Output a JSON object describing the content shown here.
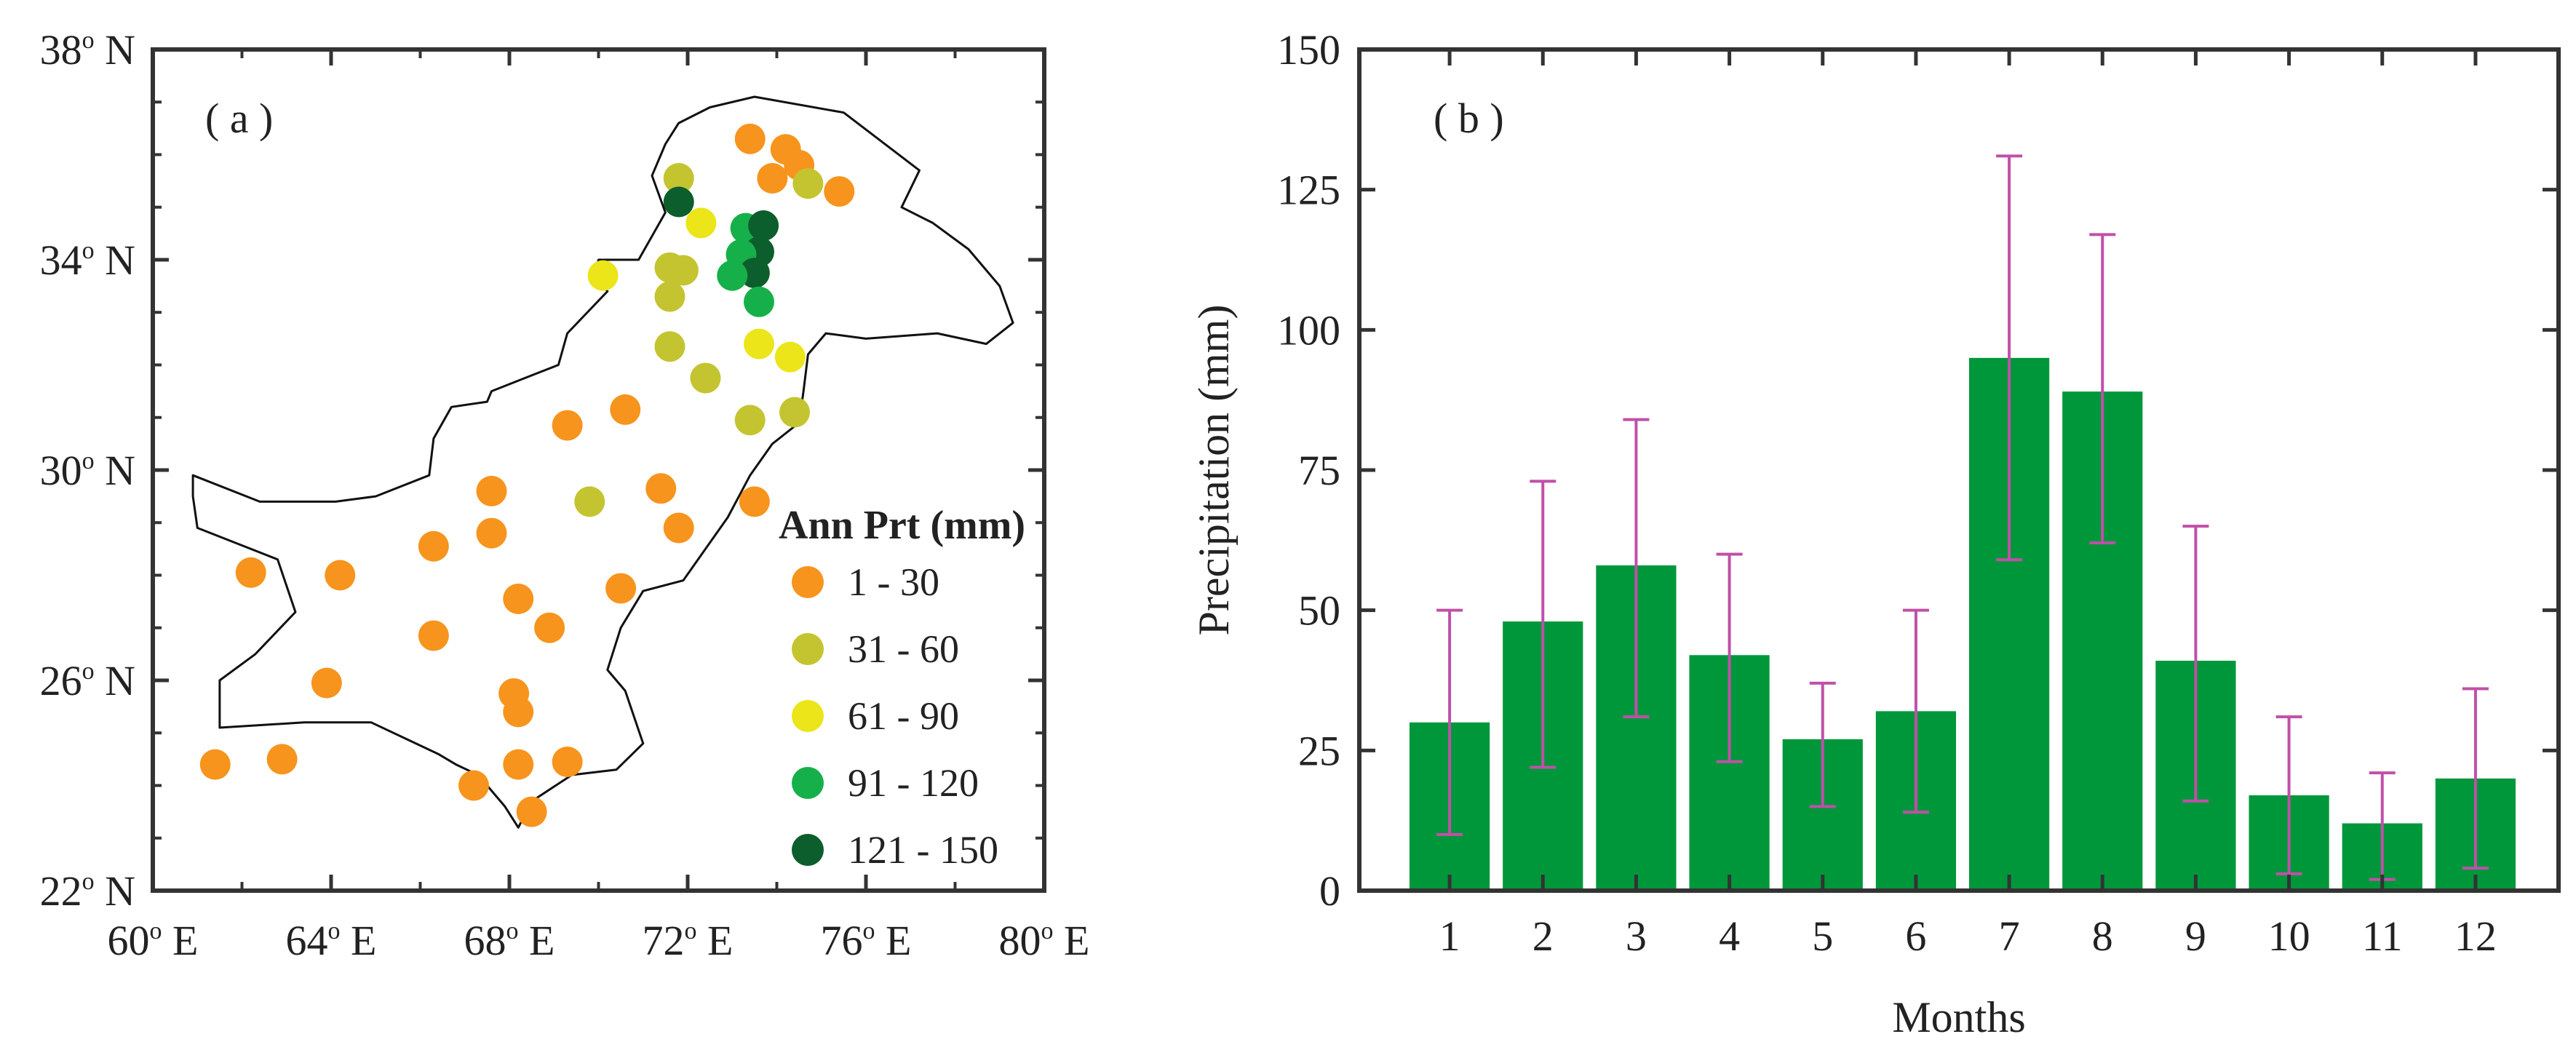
{
  "colors": {
    "bar": "#00973b",
    "errorbar": "#c050a8",
    "map_outline": "#111111",
    "classes": [
      "#f7941d",
      "#c4c430",
      "#ebe51a",
      "#16b04a",
      "#0c5e2c"
    ]
  },
  "map_panel": {
    "label": "( a )",
    "x_ticks": [
      {
        "value": 60,
        "label": "60",
        "sup": "o",
        "suffix": " E"
      },
      {
        "value": 64,
        "label": "64",
        "sup": "o",
        "suffix": " E"
      },
      {
        "value": 68,
        "label": "68",
        "sup": "o",
        "suffix": " E"
      },
      {
        "value": 72,
        "label": "72",
        "sup": "o",
        "suffix": " E"
      },
      {
        "value": 76,
        "label": "76",
        "sup": "o",
        "suffix": " E"
      },
      {
        "value": 80,
        "label": "80",
        "sup": "o",
        "suffix": " E"
      }
    ],
    "y_ticks": [
      {
        "value": 38,
        "label": "38",
        "sup": "o",
        "suffix": " N"
      },
      {
        "value": 34,
        "label": "34",
        "sup": "o",
        "suffix": " N"
      },
      {
        "value": 30,
        "label": "30",
        "sup": "o",
        "suffix": " N"
      },
      {
        "value": 26,
        "label": "26",
        "sup": "o",
        "suffix": " N"
      },
      {
        "value": 22,
        "label": "22",
        "sup": "o",
        "suffix": " N"
      }
    ],
    "xlim": [
      60,
      80
    ],
    "ylim": [
      22,
      38
    ],
    "legend": {
      "title": "Ann Prt (mm)",
      "items": [
        "1 - 30",
        "31 - 60",
        "61 - 90",
        "91 - 120",
        "121 - 150"
      ]
    },
    "outline": [
      [
        73.5,
        37.1
      ],
      [
        75.5,
        36.8
      ],
      [
        77.2,
        35.7
      ],
      [
        76.8,
        35.0
      ],
      [
        77.5,
        34.7
      ],
      [
        78.3,
        34.2
      ],
      [
        79.0,
        33.5
      ],
      [
        79.3,
        32.8
      ],
      [
        78.7,
        32.4
      ],
      [
        77.6,
        32.6
      ],
      [
        76.0,
        32.5
      ],
      [
        75.1,
        32.6
      ],
      [
        74.7,
        32.2
      ],
      [
        74.6,
        31.5
      ],
      [
        74.5,
        30.9
      ],
      [
        73.9,
        30.5
      ],
      [
        73.4,
        29.9
      ],
      [
        72.9,
        29.1
      ],
      [
        71.9,
        27.9
      ],
      [
        71.0,
        27.7
      ],
      [
        70.5,
        27.0
      ],
      [
        70.2,
        26.2
      ],
      [
        70.6,
        25.8
      ],
      [
        71.0,
        24.8
      ],
      [
        70.4,
        24.3
      ],
      [
        69.4,
        24.2
      ],
      [
        68.5,
        23.7
      ],
      [
        68.2,
        23.2
      ],
      [
        67.9,
        23.6
      ],
      [
        67.3,
        24.2
      ],
      [
        66.8,
        24.4
      ],
      [
        66.4,
        24.6
      ],
      [
        64.9,
        25.2
      ],
      [
        63.4,
        25.2
      ],
      [
        61.5,
        25.1
      ],
      [
        61.5,
        26.0
      ],
      [
        62.3,
        26.5
      ],
      [
        63.2,
        27.3
      ],
      [
        62.8,
        28.3
      ],
      [
        61.0,
        28.9
      ],
      [
        60.9,
        29.5
      ],
      [
        60.9,
        29.9
      ],
      [
        62.4,
        29.4
      ],
      [
        64.1,
        29.4
      ],
      [
        65.0,
        29.5
      ],
      [
        66.2,
        29.9
      ],
      [
        66.3,
        30.6
      ],
      [
        66.7,
        31.2
      ],
      [
        67.5,
        31.3
      ],
      [
        67.6,
        31.5
      ],
      [
        68.5,
        31.8
      ],
      [
        69.1,
        32.0
      ],
      [
        69.3,
        32.6
      ],
      [
        70.2,
        33.4
      ],
      [
        69.9,
        33.7
      ],
      [
        70.0,
        34.0
      ],
      [
        70.9,
        34.0
      ],
      [
        71.1,
        34.3
      ],
      [
        71.5,
        34.9
      ],
      [
        71.2,
        35.6
      ],
      [
        71.5,
        36.2
      ],
      [
        71.8,
        36.6
      ],
      [
        72.5,
        36.9
      ]
    ],
    "stations": [
      {
        "lon": 73.4,
        "lat": 36.3,
        "c": 0
      },
      {
        "lon": 74.2,
        "lat": 36.1,
        "c": 0
      },
      {
        "lon": 74.5,
        "lat": 35.8,
        "c": 0
      },
      {
        "lon": 73.9,
        "lat": 35.55,
        "c": 0
      },
      {
        "lon": 75.4,
        "lat": 35.3,
        "c": 0
      },
      {
        "lon": 71.8,
        "lat": 35.55,
        "c": 1
      },
      {
        "lon": 74.7,
        "lat": 35.45,
        "c": 1
      },
      {
        "lon": 71.8,
        "lat": 35.1,
        "c": 4
      },
      {
        "lon": 72.3,
        "lat": 34.7,
        "c": 2
      },
      {
        "lon": 73.3,
        "lat": 34.6,
        "c": 3
      },
      {
        "lon": 73.7,
        "lat": 34.65,
        "c": 4
      },
      {
        "lon": 73.6,
        "lat": 34.15,
        "c": 4
      },
      {
        "lon": 73.2,
        "lat": 34.1,
        "c": 3
      },
      {
        "lon": 73.5,
        "lat": 33.75,
        "c": 4
      },
      {
        "lon": 73.0,
        "lat": 33.7,
        "c": 3
      },
      {
        "lon": 73.6,
        "lat": 33.2,
        "c": 3
      },
      {
        "lon": 70.1,
        "lat": 33.7,
        "c": 2
      },
      {
        "lon": 71.6,
        "lat": 33.85,
        "c": 1
      },
      {
        "lon": 71.9,
        "lat": 33.8,
        "c": 1
      },
      {
        "lon": 71.6,
        "lat": 33.3,
        "c": 1
      },
      {
        "lon": 71.6,
        "lat": 32.35,
        "c": 1
      },
      {
        "lon": 72.4,
        "lat": 31.75,
        "c": 1
      },
      {
        "lon": 73.4,
        "lat": 30.95,
        "c": 1
      },
      {
        "lon": 74.4,
        "lat": 31.1,
        "c": 1
      },
      {
        "lon": 69.8,
        "lat": 29.4,
        "c": 1
      },
      {
        "lon": 73.6,
        "lat": 32.4,
        "c": 2
      },
      {
        "lon": 74.3,
        "lat": 32.15,
        "c": 2
      },
      {
        "lon": 70.6,
        "lat": 31.15,
        "c": 0
      },
      {
        "lon": 69.3,
        "lat": 30.85,
        "c": 0
      },
      {
        "lon": 67.6,
        "lat": 29.6,
        "c": 0
      },
      {
        "lon": 71.4,
        "lat": 29.65,
        "c": 0
      },
      {
        "lon": 73.5,
        "lat": 29.4,
        "c": 0
      },
      {
        "lon": 66.3,
        "lat": 28.55,
        "c": 0
      },
      {
        "lon": 67.6,
        "lat": 28.8,
        "c": 0
      },
      {
        "lon": 71.8,
        "lat": 28.9,
        "c": 0
      },
      {
        "lon": 62.2,
        "lat": 28.05,
        "c": 0
      },
      {
        "lon": 64.2,
        "lat": 28.0,
        "c": 0
      },
      {
        "lon": 68.2,
        "lat": 27.55,
        "c": 0
      },
      {
        "lon": 70.5,
        "lat": 27.75,
        "c": 0
      },
      {
        "lon": 68.9,
        "lat": 27.0,
        "c": 0
      },
      {
        "lon": 66.3,
        "lat": 26.85,
        "c": 0
      },
      {
        "lon": 63.9,
        "lat": 25.95,
        "c": 0
      },
      {
        "lon": 68.1,
        "lat": 25.75,
        "c": 0
      },
      {
        "lon": 68.2,
        "lat": 25.4,
        "c": 0
      },
      {
        "lon": 61.4,
        "lat": 24.4,
        "c": 0
      },
      {
        "lon": 62.9,
        "lat": 24.5,
        "c": 0
      },
      {
        "lon": 69.3,
        "lat": 24.45,
        "c": 0
      },
      {
        "lon": 68.2,
        "lat": 24.4,
        "c": 0
      },
      {
        "lon": 67.2,
        "lat": 24.0,
        "c": 0
      },
      {
        "lon": 68.5,
        "lat": 23.5,
        "c": 0
      }
    ]
  },
  "chart_data": {
    "type": "bar",
    "title": "",
    "panel_label": "( b )",
    "xlabel": "Months",
    "ylabel": "Precipitation (mm)",
    "categories": [
      "1",
      "2",
      "3",
      "4",
      "5",
      "6",
      "7",
      "8",
      "9",
      "10",
      "11",
      "12"
    ],
    "values": [
      30,
      48,
      58,
      42,
      27,
      32,
      95,
      89,
      41,
      17,
      12,
      20
    ],
    "error_low": [
      10,
      22,
      31,
      23,
      15,
      14,
      59,
      62,
      16,
      3,
      2,
      4
    ],
    "error_high": [
      50,
      73,
      84,
      60,
      37,
      50,
      131,
      117,
      65,
      31,
      21,
      36
    ],
    "ylim": [
      0,
      150
    ],
    "yticks": [
      "0",
      "25",
      "50",
      "75",
      "100",
      "125",
      "150"
    ]
  }
}
